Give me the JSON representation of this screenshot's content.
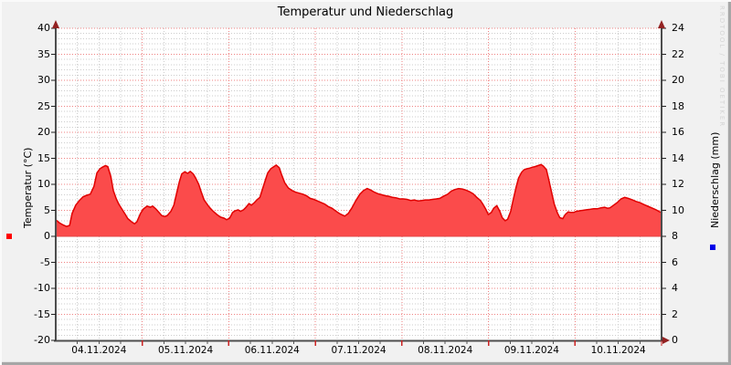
{
  "watermark": "RRDTOOL / TOBI OETIKER",
  "colors": {
    "background": "#f1f1f1",
    "plot_background": "#ffffff",
    "temperature_fill": "#fb4b4b",
    "temperature_line": "#e10000",
    "precipitation_color": "#0000e8",
    "major_grid": "#ef8282",
    "minor_grid": "#cdcdcd",
    "axis": "#4d4d4d",
    "arrow": "#932222",
    "text": "#000000"
  },
  "chart_data": {
    "type": "area",
    "title": "Temperatur und Niederschlag",
    "grid": {
      "major_dotted_red": true,
      "minor_dotted_gray": true,
      "minor_x_per_day": 4,
      "minor_y_step_degC": 1
    },
    "x": {
      "tick_labels": [
        "04.11.2024",
        "05.11.2024",
        "06.11.2024",
        "07.11.2024",
        "08.11.2024",
        "09.11.2024",
        "10.11.2024"
      ],
      "range": [
        "04.11.2024 00:00",
        "11.11.2024 00:00"
      ],
      "days": 7
    },
    "y_left": {
      "label": "Temperatur (°C)",
      "min": -20,
      "max": 40,
      "major_step": 5,
      "tick_labels": [
        "40",
        "35",
        "30",
        "25",
        "20",
        "15",
        "10",
        "5",
        "0",
        "-5",
        "-10",
        "-15",
        "-20"
      ]
    },
    "y_right": {
      "label": "Niederschlag (mm)",
      "min": 0,
      "max": 24,
      "major_step": 2,
      "tick_labels": [
        "24",
        "22",
        "20",
        "18",
        "16",
        "14",
        "12",
        "10",
        "8",
        "6",
        "4",
        "2",
        "0"
      ]
    },
    "legend_swatches": [
      {
        "series": "temperature",
        "color": "#ff0000"
      },
      {
        "series": "precipitation",
        "color": "#0000e8"
      }
    ],
    "series": [
      {
        "name": "Temperatur",
        "axis": "left",
        "unit": "°C",
        "type": "area",
        "fill": "#fb4b4b",
        "stroke": "#e10000",
        "points": [
          [
            0,
            3.2
          ],
          [
            0.006,
            2.6
          ],
          [
            0.012,
            2.2
          ],
          [
            0.018,
            1.9
          ],
          [
            0.023,
            2.1
          ],
          [
            0.027,
            4.4
          ],
          [
            0.033,
            6.0
          ],
          [
            0.039,
            6.9
          ],
          [
            0.045,
            7.6
          ],
          [
            0.051,
            7.9
          ],
          [
            0.057,
            8.1
          ],
          [
            0.063,
            9.6
          ],
          [
            0.068,
            12.2
          ],
          [
            0.073,
            13.0
          ],
          [
            0.077,
            13.3
          ],
          [
            0.082,
            13.6
          ],
          [
            0.086,
            13.4
          ],
          [
            0.091,
            11.5
          ],
          [
            0.095,
            8.8
          ],
          [
            0.1,
            7.2
          ],
          [
            0.104,
            6.2
          ],
          [
            0.11,
            5.1
          ],
          [
            0.115,
            4.2
          ],
          [
            0.119,
            3.4
          ],
          [
            0.125,
            2.8
          ],
          [
            0.13,
            2.4
          ],
          [
            0.134,
            2.8
          ],
          [
            0.14,
            4.4
          ],
          [
            0.145,
            5.3
          ],
          [
            0.151,
            5.8
          ],
          [
            0.156,
            5.6
          ],
          [
            0.16,
            5.8
          ],
          [
            0.165,
            5.3
          ],
          [
            0.171,
            4.5
          ],
          [
            0.175,
            4.0
          ],
          [
            0.18,
            3.8
          ],
          [
            0.184,
            4.0
          ],
          [
            0.19,
            4.8
          ],
          [
            0.195,
            6.0
          ],
          [
            0.199,
            8.0
          ],
          [
            0.204,
            10.5
          ],
          [
            0.208,
            12.0
          ],
          [
            0.213,
            12.4
          ],
          [
            0.218,
            12.1
          ],
          [
            0.222,
            12.5
          ],
          [
            0.227,
            12.0
          ],
          [
            0.231,
            11.2
          ],
          [
            0.236,
            10.0
          ],
          [
            0.24,
            8.6
          ],
          [
            0.245,
            7.0
          ],
          [
            0.251,
            6.0
          ],
          [
            0.255,
            5.4
          ],
          [
            0.26,
            4.8
          ],
          [
            0.266,
            4.2
          ],
          [
            0.272,
            3.7
          ],
          [
            0.278,
            3.5
          ],
          [
            0.282,
            3.2
          ],
          [
            0.287,
            3.5
          ],
          [
            0.292,
            4.6
          ],
          [
            0.296,
            4.9
          ],
          [
            0.301,
            5.1
          ],
          [
            0.305,
            4.8
          ],
          [
            0.31,
            5.1
          ],
          [
            0.314,
            5.6
          ],
          [
            0.319,
            6.3
          ],
          [
            0.323,
            6.0
          ],
          [
            0.328,
            6.5
          ],
          [
            0.332,
            7.0
          ],
          [
            0.337,
            7.5
          ],
          [
            0.341,
            9.0
          ],
          [
            0.346,
            10.8
          ],
          [
            0.35,
            12.2
          ],
          [
            0.355,
            13.0
          ],
          [
            0.36,
            13.4
          ],
          [
            0.364,
            13.7
          ],
          [
            0.369,
            13.2
          ],
          [
            0.373,
            11.8
          ],
          [
            0.378,
            10.3
          ],
          [
            0.384,
            9.3
          ],
          [
            0.39,
            8.8
          ],
          [
            0.396,
            8.5
          ],
          [
            0.402,
            8.3
          ],
          [
            0.408,
            8.1
          ],
          [
            0.414,
            7.8
          ],
          [
            0.42,
            7.3
          ],
          [
            0.426,
            7.1
          ],
          [
            0.432,
            6.8
          ],
          [
            0.438,
            6.5
          ],
          [
            0.444,
            6.2
          ],
          [
            0.45,
            5.7
          ],
          [
            0.456,
            5.4
          ],
          [
            0.462,
            4.9
          ],
          [
            0.468,
            4.4
          ],
          [
            0.473,
            4.1
          ],
          [
            0.477,
            3.9
          ],
          [
            0.483,
            4.4
          ],
          [
            0.489,
            5.5
          ],
          [
            0.495,
            6.8
          ],
          [
            0.502,
            8.1
          ],
          [
            0.508,
            8.8
          ],
          [
            0.514,
            9.2
          ],
          [
            0.52,
            8.9
          ],
          [
            0.526,
            8.5
          ],
          [
            0.532,
            8.2
          ],
          [
            0.538,
            8.0
          ],
          [
            0.544,
            7.8
          ],
          [
            0.55,
            7.7
          ],
          [
            0.556,
            7.5
          ],
          [
            0.562,
            7.4
          ],
          [
            0.568,
            7.2
          ],
          [
            0.574,
            7.2
          ],
          [
            0.58,
            7.1
          ],
          [
            0.586,
            6.9
          ],
          [
            0.592,
            7.0
          ],
          [
            0.598,
            6.8
          ],
          [
            0.604,
            6.9
          ],
          [
            0.61,
            7.0
          ],
          [
            0.616,
            7.0
          ],
          [
            0.622,
            7.1
          ],
          [
            0.628,
            7.2
          ],
          [
            0.634,
            7.3
          ],
          [
            0.64,
            7.7
          ],
          [
            0.647,
            8.1
          ],
          [
            0.653,
            8.7
          ],
          [
            0.659,
            9.0
          ],
          [
            0.665,
            9.2
          ],
          [
            0.671,
            9.1
          ],
          [
            0.677,
            8.9
          ],
          [
            0.683,
            8.6
          ],
          [
            0.689,
            8.2
          ],
          [
            0.695,
            7.5
          ],
          [
            0.701,
            6.9
          ],
          [
            0.705,
            6.2
          ],
          [
            0.71,
            5.2
          ],
          [
            0.714,
            4.2
          ],
          [
            0.719,
            4.6
          ],
          [
            0.723,
            5.4
          ],
          [
            0.728,
            5.9
          ],
          [
            0.733,
            4.8
          ],
          [
            0.737,
            3.6
          ],
          [
            0.742,
            3.0
          ],
          [
            0.746,
            3.3
          ],
          [
            0.751,
            4.8
          ],
          [
            0.755,
            7.0
          ],
          [
            0.76,
            9.5
          ],
          [
            0.764,
            11.2
          ],
          [
            0.769,
            12.3
          ],
          [
            0.773,
            12.8
          ],
          [
            0.778,
            13.0
          ],
          [
            0.782,
            13.1
          ],
          [
            0.787,
            13.3
          ],
          [
            0.791,
            13.4
          ],
          [
            0.796,
            13.6
          ],
          [
            0.801,
            13.8
          ],
          [
            0.805,
            13.5
          ],
          [
            0.81,
            12.8
          ],
          [
            0.814,
            10.8
          ],
          [
            0.819,
            8.2
          ],
          [
            0.823,
            6.2
          ],
          [
            0.828,
            4.5
          ],
          [
            0.832,
            3.6
          ],
          [
            0.837,
            3.4
          ],
          [
            0.841,
            4.2
          ],
          [
            0.846,
            4.7
          ],
          [
            0.85,
            4.6
          ],
          [
            0.855,
            4.6
          ],
          [
            0.859,
            4.8
          ],
          [
            0.864,
            4.9
          ],
          [
            0.87,
            5.0
          ],
          [
            0.876,
            5.1
          ],
          [
            0.882,
            5.2
          ],
          [
            0.888,
            5.3
          ],
          [
            0.894,
            5.3
          ],
          [
            0.9,
            5.5
          ],
          [
            0.906,
            5.6
          ],
          [
            0.911,
            5.4
          ],
          [
            0.915,
            5.5
          ],
          [
            0.921,
            6.0
          ],
          [
            0.927,
            6.5
          ],
          [
            0.933,
            7.2
          ],
          [
            0.939,
            7.5
          ],
          [
            0.945,
            7.3
          ],
          [
            0.952,
            7.0
          ],
          [
            0.958,
            6.7
          ],
          [
            0.964,
            6.5
          ],
          [
            0.971,
            6.1
          ],
          [
            0.979,
            5.7
          ],
          [
            0.985,
            5.4
          ],
          [
            0.991,
            5.1
          ],
          [
            0.997,
            4.7
          ],
          [
            1,
            4.6
          ]
        ]
      },
      {
        "name": "Niederschlag",
        "axis": "right",
        "unit": "mm",
        "type": "area",
        "fill": "#0000e8",
        "constant_value": 0
      }
    ]
  }
}
